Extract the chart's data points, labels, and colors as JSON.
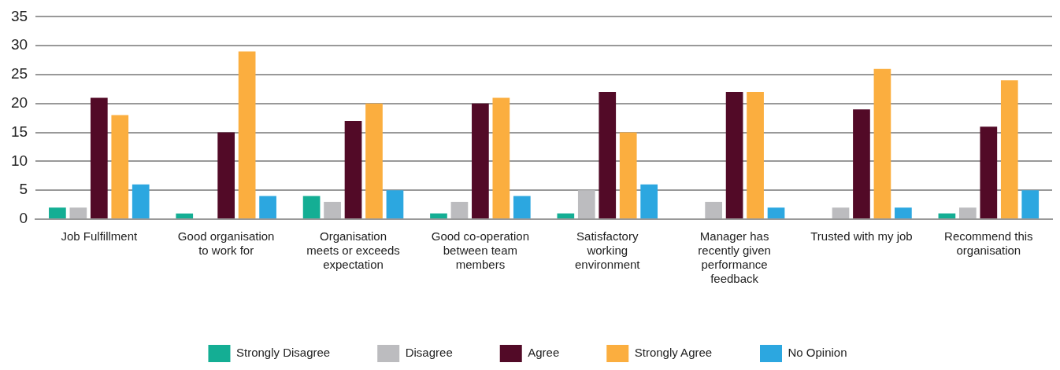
{
  "chart_data": {
    "type": "bar",
    "categories": [
      "Job Fulfillment",
      "Good organisation to work for",
      "Organisation meets or exceeds expectation",
      "Good co-operation between team members",
      "Satisfactory working environment",
      "Manager has recently given performance feedback",
      "Trusted with my job",
      "Recommend this organisation"
    ],
    "series": [
      {
        "name": "Strongly Disagree",
        "color": "#14ae94",
        "values": [
          2,
          1,
          4,
          1,
          1,
          0,
          0,
          1
        ]
      },
      {
        "name": "Disagree",
        "color": "#bcbcbf",
        "values": [
          2,
          0,
          3,
          3,
          5,
          3,
          2,
          2
        ]
      },
      {
        "name": "Agree",
        "color": "#520a27",
        "values": [
          21,
          15,
          17,
          20,
          22,
          22,
          19,
          16
        ]
      },
      {
        "name": "Strongly Agree",
        "color": "#fbae3f",
        "values": [
          18,
          29,
          20,
          21,
          15,
          22,
          26,
          24
        ]
      },
      {
        "name": "No Opinion",
        "color": "#2ca7e0",
        "values": [
          6,
          4,
          5,
          4,
          6,
          2,
          2,
          5
        ]
      }
    ],
    "ylim": [
      0,
      35
    ],
    "yticks": [
      0,
      5,
      10,
      15,
      20,
      25,
      30,
      35
    ],
    "grid": "y",
    "legend": "bottom"
  }
}
